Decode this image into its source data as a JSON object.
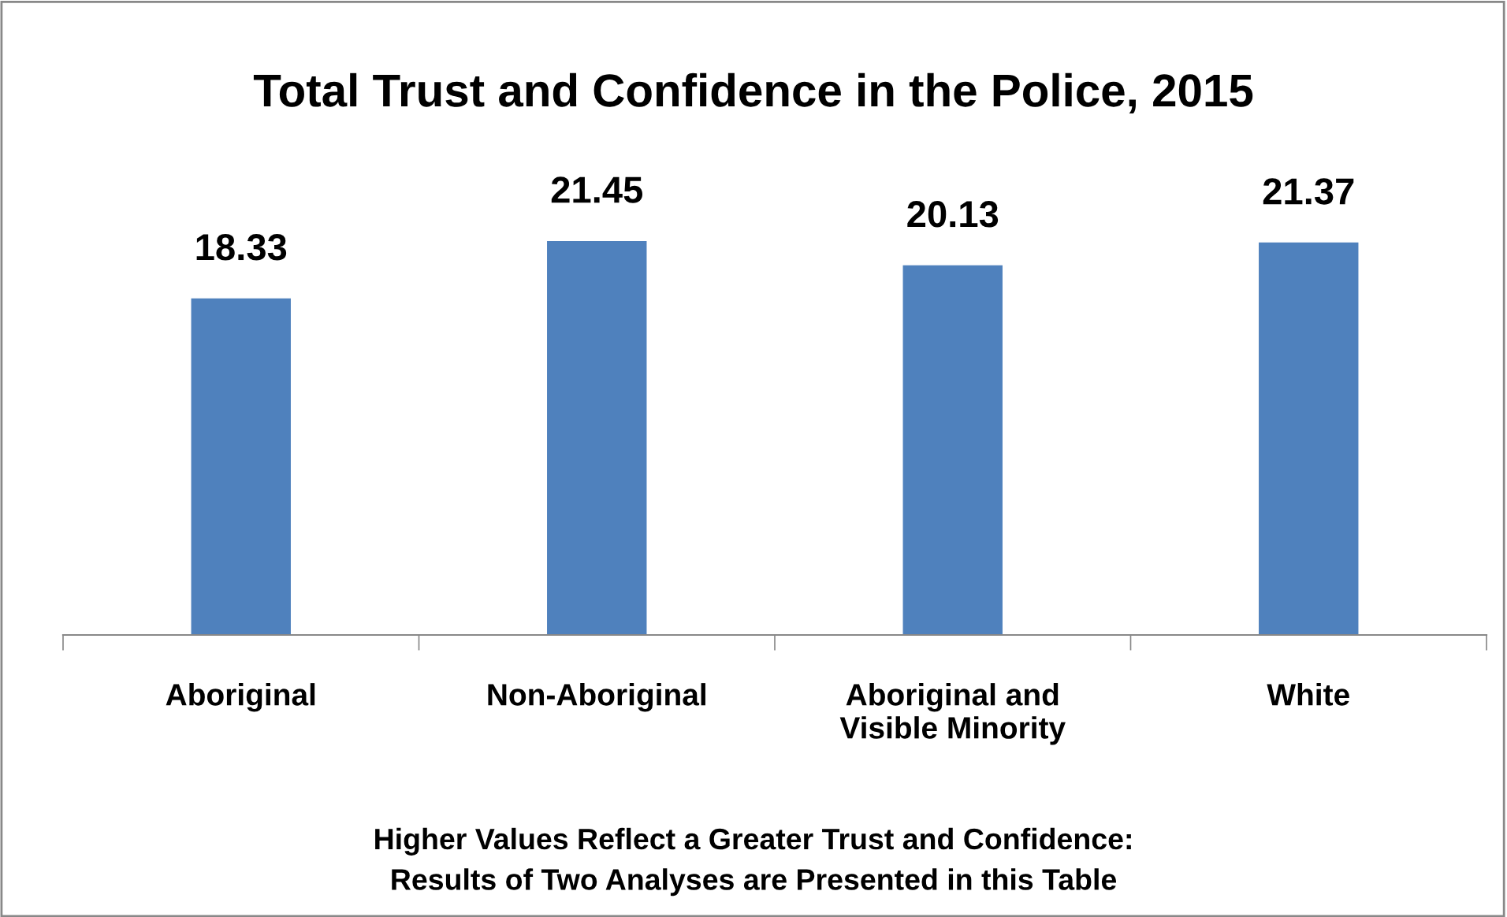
{
  "chart_data": {
    "type": "bar",
    "title": "Total Trust and Confidence in the Police, 2015",
    "categories": [
      "Aboriginal",
      "Non-Aboriginal",
      "Aboriginal and\nVisible Minority",
      "White"
    ],
    "values": [
      18.33,
      21.45,
      20.13,
      21.37
    ],
    "color": "#4f81bd",
    "tick_labels": "x",
    "data_labels": true,
    "grid": false,
    "legend": false,
    "annotations": [
      "Higher Values Reflect a Greater Trust and Confidence:\nResults of Two Analyses are Presented in this Table"
    ]
  }
}
